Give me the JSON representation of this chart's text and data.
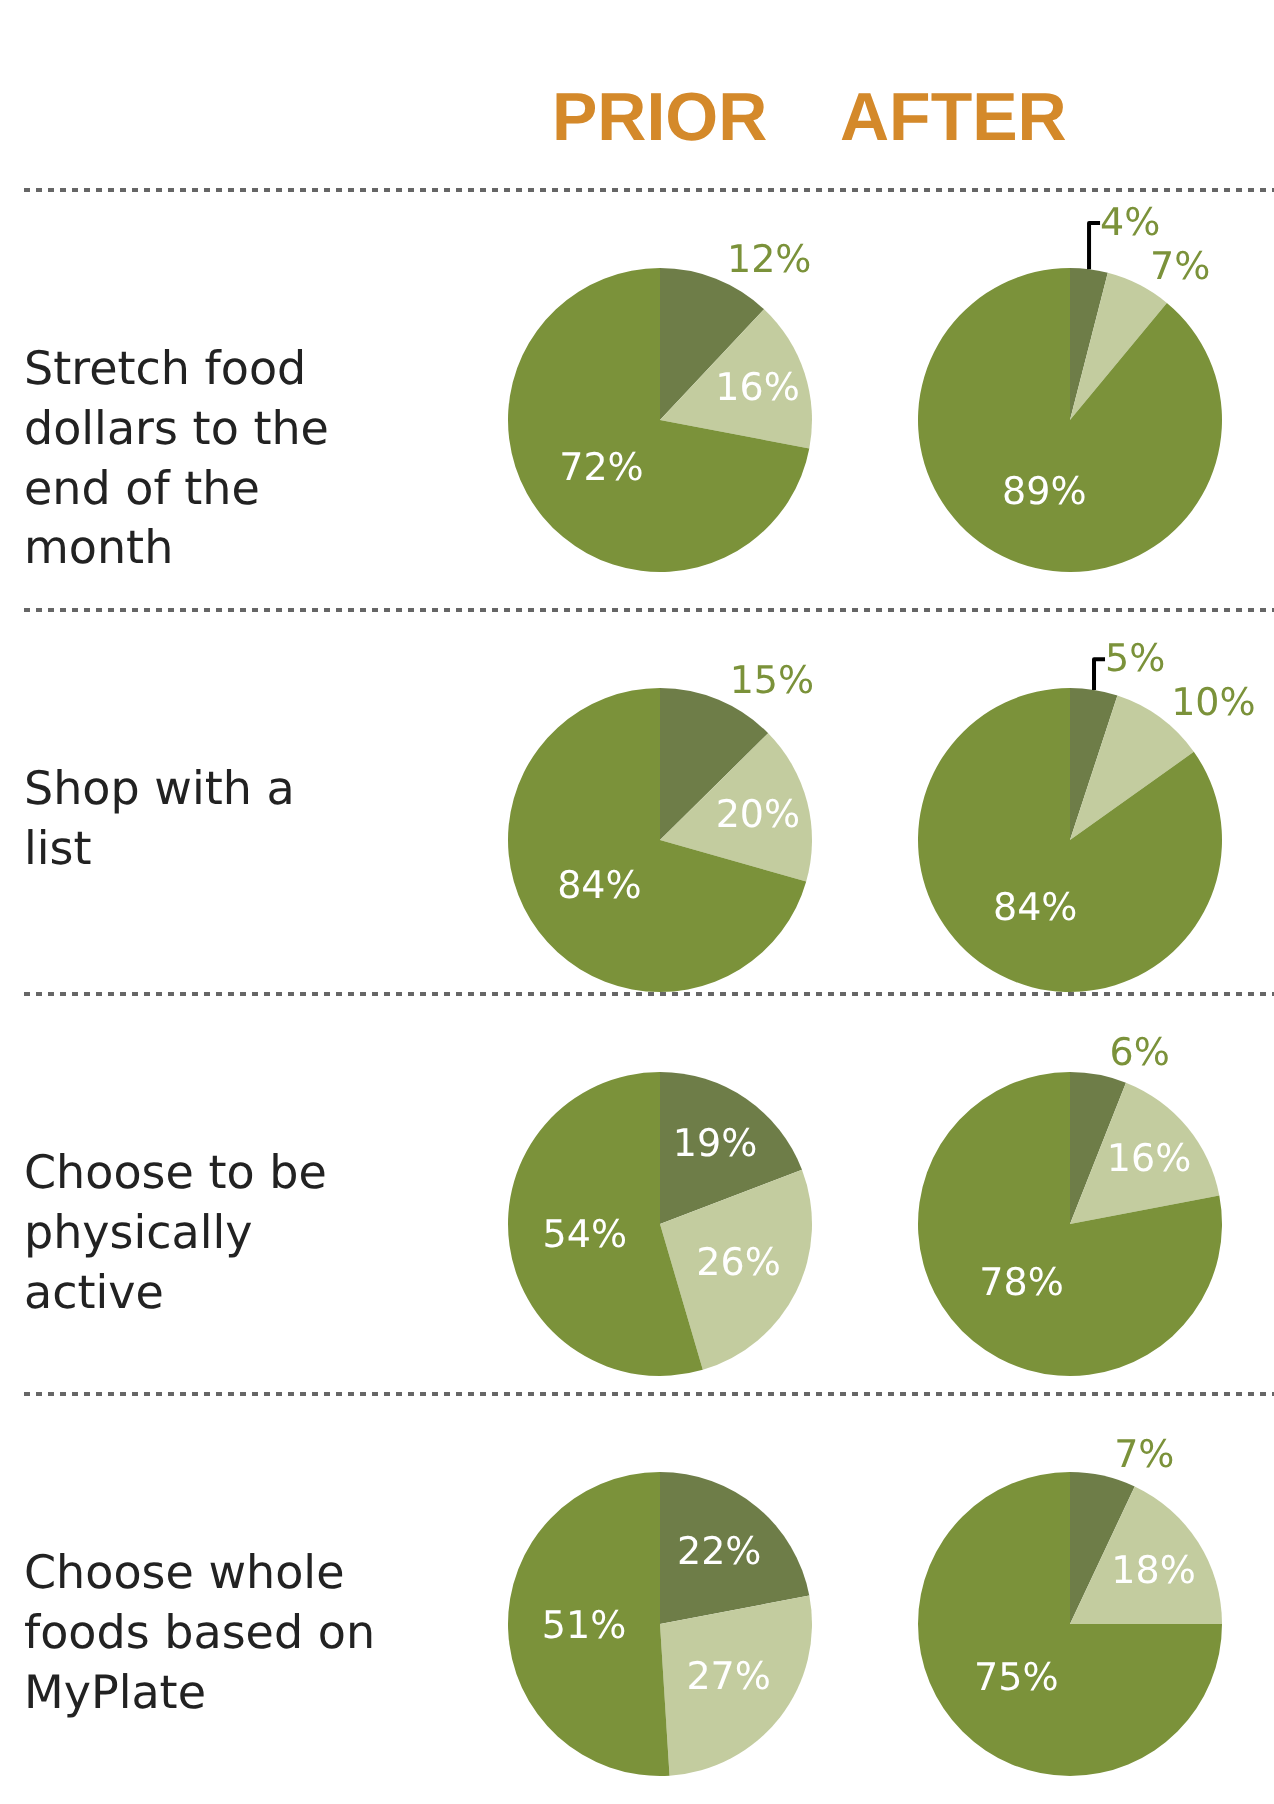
{
  "chart_data": [
    {
      "type": "pie",
      "title": "PRIOR",
      "annotations": [
        "Stretch food dollars to the end of the month"
      ],
      "categories": [
        null,
        null,
        null
      ],
      "values": [
        12,
        16,
        72
      ],
      "value_labels": [
        "12%",
        "16%",
        "72%"
      ],
      "colors": [
        "#6e7d48",
        "#c3cc9f",
        "#7b923a"
      ]
    },
    {
      "type": "pie",
      "title": "AFTER",
      "categories": [
        null,
        null,
        null
      ],
      "values": [
        4,
        7,
        89
      ],
      "value_labels": [
        "4%",
        "7%",
        "89%"
      ],
      "colors": [
        "#6e7d48",
        "#c3cc9f",
        "#7b923a"
      ]
    },
    {
      "type": "pie",
      "annotations": [
        "Shop with a list"
      ],
      "categories": [
        null,
        null,
        null
      ],
      "values": [
        15,
        20,
        84
      ],
      "value_labels": [
        "15%",
        "20%",
        "84%"
      ],
      "colors": [
        "#6e7d48",
        "#c3cc9f",
        "#7b923a"
      ]
    },
    {
      "type": "pie",
      "categories": [
        null,
        null,
        null
      ],
      "values": [
        5,
        10,
        84
      ],
      "value_labels": [
        "5%",
        "10%",
        "84%"
      ],
      "colors": [
        "#6e7d48",
        "#c3cc9f",
        "#7b923a"
      ]
    },
    {
      "type": "pie",
      "annotations": [
        "Choose to be physically active"
      ],
      "categories": [
        null,
        null,
        null
      ],
      "values": [
        19,
        26,
        54
      ],
      "value_labels": [
        "19%",
        "26%",
        "54%"
      ],
      "colors": [
        "#6e7d48",
        "#c3cc9f",
        "#7b923a"
      ]
    },
    {
      "type": "pie",
      "categories": [
        null,
        null,
        null
      ],
      "values": [
        6,
        16,
        78
      ],
      "value_labels": [
        "6%",
        "16%",
        "78%"
      ],
      "colors": [
        "#6e7d48",
        "#c3cc9f",
        "#7b923a"
      ]
    },
    {
      "type": "pie",
      "annotations": [
        "Choose whole foods based on MyPlate"
      ],
      "categories": [
        null,
        null,
        null
      ],
      "values": [
        22,
        27,
        51
      ],
      "value_labels": [
        "22%",
        "27%",
        "51%"
      ],
      "colors": [
        "#6e7d48",
        "#c3cc9f",
        "#7b923a"
      ]
    },
    {
      "type": "pie",
      "categories": [
        null,
        null,
        null
      ],
      "values": [
        7,
        18,
        75
      ],
      "value_labels": [
        "7%",
        "18%",
        "75%"
      ],
      "colors": [
        "#6e7d48",
        "#c3cc9f",
        "#7b923a"
      ]
    }
  ]
}
